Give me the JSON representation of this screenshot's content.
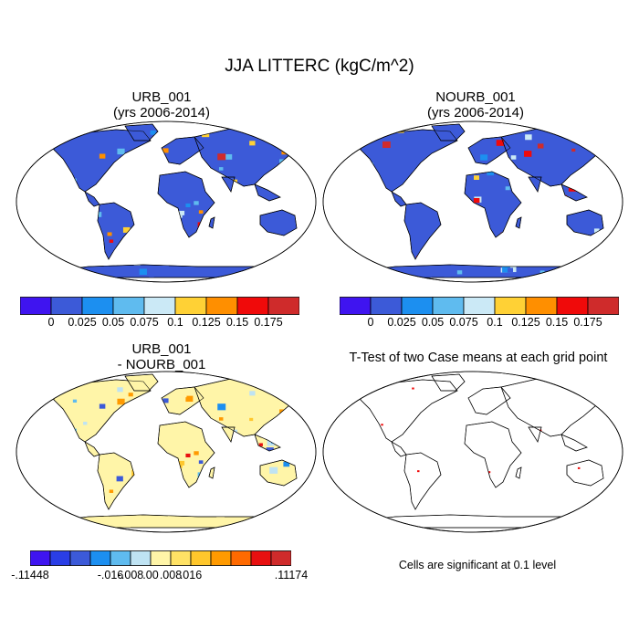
{
  "title": "JJA LITTERC (kgC/m^2)",
  "panels": [
    {
      "id": "urb",
      "title_line1": "URB_001",
      "title_line2": "(yrs 2006-2014)"
    },
    {
      "id": "nourb",
      "title_line1": "NOURB_001",
      "title_line2": "(yrs 2006-2014)"
    },
    {
      "id": "diff",
      "title_line1": "URB_001",
      "title_line2": "- NOURB_001"
    },
    {
      "id": "ttest",
      "title_line1": "T-Test of two Case means at each grid point",
      "title_line2": ""
    }
  ],
  "colorbar_top": {
    "colors": [
      "#3f14f0",
      "#3c5ad8",
      "#1c8ff0",
      "#5fbbef",
      "#cbe9f6",
      "#ffd135",
      "#ff8f00",
      "#f00a0a",
      "#cf2b2b"
    ],
    "labels": [
      "0",
      "0.025",
      "0.05",
      "0.075",
      "0.1",
      "0.125",
      "0.15",
      "0.175"
    ]
  },
  "colorbar_bottom": {
    "colors": [
      "#3f14f0",
      "#2a3ee6",
      "#3c5ad8",
      "#1c8ff0",
      "#5fbbef",
      "#bfe3f3",
      "#fff5a8",
      "#ffe265",
      "#ffc72c",
      "#ff9a00",
      "#ff6a00",
      "#e81010",
      "#cf2b2b"
    ],
    "labels": [
      "-.11448",
      "-.016",
      "-.008",
      ".00",
      ".008",
      ".016",
      ".11174"
    ]
  },
  "ttest_note": "Cells are significant at 0.1 level",
  "icons": [
    "world-map-icon"
  ]
}
